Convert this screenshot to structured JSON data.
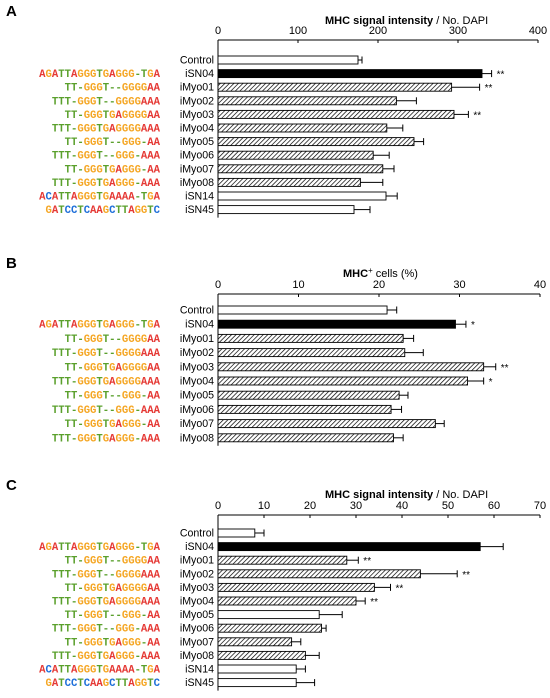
{
  "chart_data": [
    {
      "type": "bar",
      "panel": "A",
      "title_bold": "MHC signal intensity",
      "title_rest": " / No. DAPI",
      "xlim": [
        0,
        400
      ],
      "ticks": [
        0,
        100,
        200,
        300,
        400
      ],
      "categories": [
        "Control",
        "iSN04",
        "iMyo01",
        "iMyo02",
        "iMyo03",
        "iMyo04",
        "iMyo05",
        "iMyo06",
        "iMyo07",
        "iMyo08",
        "iSN14",
        "iSN45"
      ],
      "sequences": [
        "",
        "AGATTAGGGTGAGGG-TGA",
        "TT-GGGT--GGGGAA",
        "TTT-GGGT--GGGGAAA",
        "TT-GGGTGAGGGGAA",
        "TTT-GGGTGAGGGGAAA",
        "TT-GGGT--GGG-AA",
        "TTT-GGGT--GGG-AAA",
        "TT-GGGTGAGGG-AA",
        "TTT-GGGTGAGGG-AAA",
        "ACATTAGGGTGAAAA-TGA",
        "GATCCTCAAGCTTAGGTC"
      ],
      "values": [
        175,
        330,
        292,
        223,
        295,
        211,
        245,
        194,
        206,
        178,
        210,
        170
      ],
      "errors": [
        5,
        12,
        35,
        25,
        18,
        20,
        12,
        20,
        14,
        28,
        14,
        20
      ],
      "fills": [
        "white",
        "black",
        "hatch",
        "hatch",
        "hatch",
        "hatch",
        "hatch",
        "hatch",
        "hatch",
        "hatch",
        "white",
        "white"
      ],
      "significance": [
        "",
        "**",
        "**",
        "",
        "**",
        "",
        "",
        "",
        "",
        "",
        "",
        ""
      ]
    },
    {
      "type": "bar",
      "panel": "B",
      "title_bold": "MHC",
      "title_sup": "+",
      "title_rest": " cells  (%)",
      "xlim": [
        0,
        40
      ],
      "ticks": [
        0,
        10,
        20,
        30,
        40
      ],
      "categories": [
        "Control",
        "iSN04",
        "iMyo01",
        "iMyo02",
        "iMyo03",
        "iMyo04",
        "iMyo05",
        "iMyo06",
        "iMyo07",
        "iMyo08"
      ],
      "sequences": [
        "",
        "AGATTAGGGTGAGGG-TGA",
        "TT-GGGT--GGGGAA",
        "TTT-GGGT--GGGGAAA",
        "TT-GGGTGAGGGGAA",
        "TTT-GGGTGAGGGGAAA",
        "TT-GGGT--GGG-AA",
        "TTT-GGGT--GGG-AAA",
        "TT-GGGTGAGGG-AA",
        "TTT-GGGTGAGGG-AAA"
      ],
      "values": [
        21,
        29.5,
        23,
        23.2,
        33,
        31,
        22.5,
        21.5,
        27,
        21.8
      ],
      "errors": [
        1.2,
        1.3,
        1.3,
        2.3,
        1.5,
        2.0,
        1.1,
        1.3,
        1.1,
        1.2
      ],
      "fills": [
        "white",
        "black",
        "hatch",
        "hatch",
        "hatch",
        "hatch",
        "hatch",
        "hatch",
        "hatch",
        "hatch"
      ],
      "significance": [
        "",
        "*",
        "",
        "",
        "**",
        "*",
        "",
        "",
        "",
        ""
      ]
    },
    {
      "type": "bar",
      "panel": "C",
      "title_bold": "MHC signal intensity",
      "title_rest": " / No. DAPI",
      "xlim": [
        0,
        70
      ],
      "ticks": [
        0,
        10,
        20,
        30,
        40,
        50,
        60,
        70
      ],
      "categories": [
        "Control",
        "iSN04",
        "iMyo01",
        "iMyo02",
        "iMyo03",
        "iMyo04",
        "iMyo05",
        "iMyo06",
        "iMyo07",
        "iMyo08",
        "iSN14",
        "iSN45"
      ],
      "sequences": [
        "",
        "AGATTAGGGTGAGGG-TGA",
        "TT-GGGT--GGGGAA",
        "TTT-GGGT--GGGGAAA",
        "TT-GGGTGAGGGGAA",
        "TTT-GGGTGAGGGGAAA",
        "TT-GGGT--GGG-AA",
        "TTT-GGGT--GGG-AAA",
        "TT-GGGTGAGGG-AA",
        "TTT-GGGTGAGGG-AAA",
        "ACATTAGGGTGAAAA-TGA",
        "GATCCTCAAGCTTAGGTC"
      ],
      "values": [
        8,
        57,
        28,
        44,
        34,
        30,
        22,
        22.5,
        16,
        19,
        17,
        17
      ],
      "errors": [
        2,
        5,
        2.5,
        8,
        3.5,
        2,
        5,
        1,
        2,
        3,
        2,
        4
      ],
      "fills": [
        "white",
        "black",
        "hatch",
        "hatch",
        "hatch",
        "hatch",
        "white",
        "hatch",
        "hatch",
        "hatch",
        "white",
        "white"
      ],
      "significance": [
        "",
        "",
        "**",
        "**",
        "**",
        "**",
        "",
        "",
        "",
        "",
        "",
        ""
      ]
    }
  ],
  "base_colors": {
    "A": "#e53935",
    "G": "#f5a623",
    "T": "#5aa02c",
    "C": "#1e6fd9",
    "-": "#5aa02c"
  }
}
